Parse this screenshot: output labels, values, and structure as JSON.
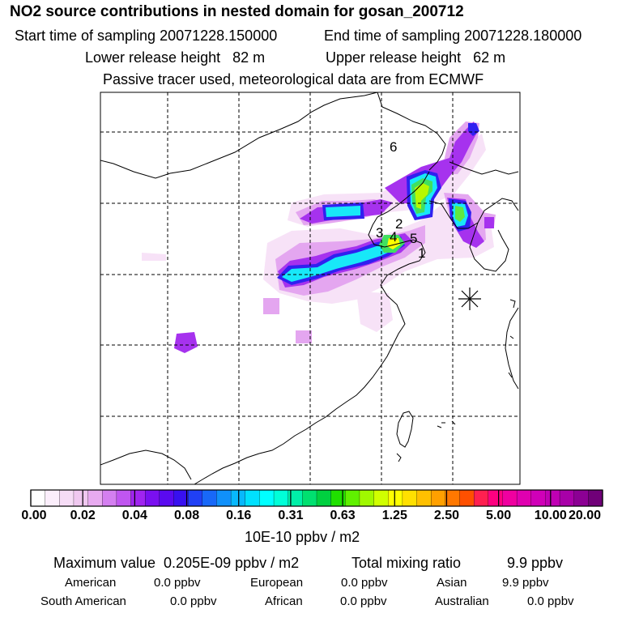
{
  "header": {
    "title": "NO2 source contributions in nested domain for gosan_200712",
    "start_label": "Start time of sampling 20071228.150000",
    "end_label": "End time of sampling 20071228.180000",
    "lower_label": "Lower release height   82 m",
    "upper_label": "Upper release height   62 m",
    "tracer_note": "Passive tracer used, meteorological data are from ECMWF"
  },
  "map": {
    "site_marker": "asterisk-marker",
    "point_labels": [
      "6",
      "2",
      "3",
      "4",
      "5",
      "1"
    ]
  },
  "colorbar": {
    "unit": "10E-10 ppbv / m2",
    "ticks": [
      "0.00",
      "0.02",
      "0.04",
      "0.08",
      "0.16",
      "0.31",
      "0.63",
      "1.25",
      "2.50",
      "5.00",
      "10.00",
      "20.00"
    ],
    "colors": [
      "#ffffff",
      "#fbeefb",
      "#f6dcf6",
      "#f0c8f0",
      "#e8aaf0",
      "#d47ff0",
      "#c056f0",
      "#a024f0",
      "#7a10f0",
      "#5a0af0",
      "#3810f0",
      "#2040f5",
      "#1868f8",
      "#1090fa",
      "#08b8fc",
      "#00e0fe",
      "#00ffff",
      "#00ffd8",
      "#00f0a8",
      "#00e070",
      "#00d040",
      "#20e000",
      "#60f000",
      "#a0f800",
      "#d0ff00",
      "#ffff00",
      "#ffe000",
      "#ffc000",
      "#ffa000",
      "#ff7800",
      "#ff5000",
      "#ff2050",
      "#ff0080",
      "#f000a0",
      "#e000b0",
      "#d000b8",
      "#c000b4",
      "#a800a8",
      "#8c0094",
      "#700078"
    ]
  },
  "footer": {
    "max_value": "Maximum value  0.205E-09 ppbv / m2",
    "total_label": "Total mixing ratio",
    "total_value": "9.9 ppbv",
    "regions": [
      {
        "name": "American",
        "value": "0.0 ppbv"
      },
      {
        "name": "European",
        "value": "0.0 ppbv"
      },
      {
        "name": "Asian",
        "value": "9.9 ppbv"
      },
      {
        "name": "South American",
        "value": "0.0 ppbv"
      },
      {
        "name": "African",
        "value": "0.0 ppbv"
      },
      {
        "name": "Australian",
        "value": "0.0 ppbv"
      }
    ]
  }
}
